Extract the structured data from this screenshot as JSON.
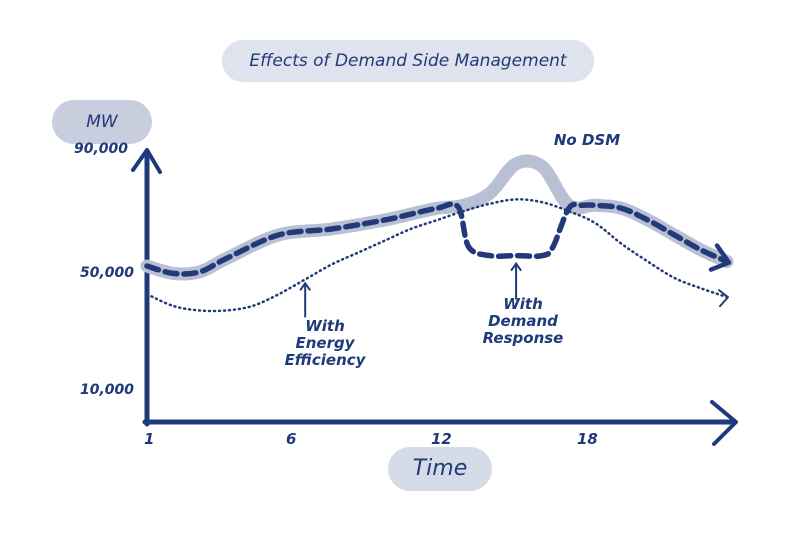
{
  "chart_data": {
    "type": "line",
    "title": "Effects of Demand Side Management",
    "ylabel": "MW",
    "xlabel": "Time",
    "x_ticks": [
      "1",
      "6",
      "12",
      "18"
    ],
    "y_ticks": [
      "10,000",
      "50,000",
      "90,000"
    ],
    "xlim": [
      1,
      23
    ],
    "ylim": [
      10000,
      90000
    ],
    "grid": false,
    "series": [
      {
        "name": "No DSM",
        "style": "solid-light",
        "color": "#b9c0d4",
        "x": [
          1,
          2,
          3,
          4,
          6,
          8,
          10,
          11,
          12,
          13,
          14,
          15,
          16,
          17,
          18,
          19,
          20,
          21,
          22,
          23
        ],
        "y": [
          50500,
          48000,
          48500,
          53000,
          61000,
          63000,
          66000,
          68000,
          70000,
          71000,
          75000,
          85000,
          84000,
          71000,
          71000,
          70000,
          66000,
          61000,
          56000,
          52000
        ]
      },
      {
        "name": "With Demand Response",
        "style": "dashed-bold",
        "color": "#233a78",
        "x": [
          1,
          2,
          3,
          4,
          6,
          8,
          10,
          11,
          12,
          12.8,
          13.2,
          14,
          15,
          16,
          16.4,
          17,
          17.5,
          18,
          19,
          20,
          21,
          22,
          23
        ],
        "y": [
          50500,
          48000,
          48500,
          53000,
          61000,
          63000,
          66000,
          68000,
          70000,
          70500,
          57000,
          54000,
          54000,
          54000,
          57000,
          70000,
          71000,
          71000,
          70000,
          66000,
          61000,
          56000,
          52000
        ]
      },
      {
        "name": "With Energy Efficiency",
        "style": "dotted",
        "color": "#233a78",
        "x": [
          1,
          2,
          3,
          4,
          5,
          6,
          7,
          8,
          9,
          10,
          11,
          12,
          13,
          14,
          15,
          16,
          17,
          18,
          19,
          20,
          21,
          22,
          23
        ],
        "y": [
          41000,
          37000,
          35500,
          35500,
          37000,
          41000,
          46000,
          51000,
          55000,
          59000,
          63000,
          66000,
          69000,
          71500,
          73000,
          72000,
          69000,
          65000,
          58000,
          52000,
          46500,
          43000,
          40000
        ]
      }
    ],
    "annotations": [
      {
        "text": "No DSM",
        "points_to": "No DSM peak"
      },
      {
        "text": "With Energy Efficiency",
        "points_to": "With Energy Efficiency"
      },
      {
        "text": "With Demand Response",
        "points_to": "With Demand Response"
      }
    ]
  },
  "labels": {
    "title": "Effects of Demand Side Management",
    "unit": "MW",
    "time": "Time",
    "no_dsm": "No DSM",
    "ee_line1": "With",
    "ee_line2": "Energy",
    "ee_line3": "Efficiency",
    "dr_line1": "With",
    "dr_line2": "Demand",
    "dr_line3": "Response",
    "ytick_top": "90,000",
    "ytick_mid": "50,000",
    "ytick_bottom": "10,000",
    "xtick_1": "1",
    "xtick_6": "6",
    "xtick_12": "12",
    "xtick_18": "18"
  }
}
